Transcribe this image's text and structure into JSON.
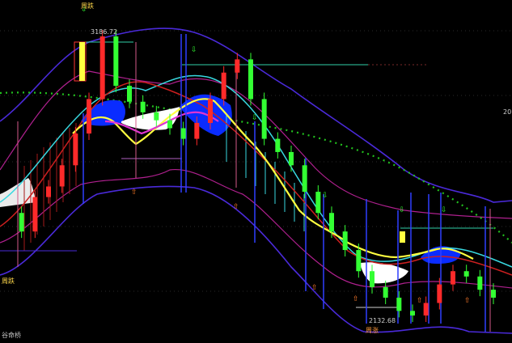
{
  "annotations": {
    "top_marker": "周跌",
    "high_price": "3186.72",
    "low_price": "2132.68",
    "low_marker": "周涨",
    "left_marker": "周跌",
    "axis_fragment": "20",
    "bottom_left": "谷命桥"
  },
  "colors": {
    "background": "#000000",
    "up_candle": "#ff2a2a",
    "down_candle": "#33ff33",
    "envelope": "#4a2ad9",
    "channel_outer": "#b0208f",
    "dotted_ma": "#22c11e",
    "cyan_ma": "#38d8e0",
    "yellow_ma": "#ffff40",
    "cloud_up": "#ffffff",
    "cloud_down": "#0a2cff",
    "marker_vertical": "#2f3fff",
    "level_line": "#31d0a8",
    "arrow_up": "#ff7a2a",
    "arrow_down": "#33ff33"
  },
  "chart_data": {
    "type": "candlestick",
    "x_axis": "time (weekly bars)",
    "price_high": 3186.72,
    "price_low": 2132.68,
    "series": [
      {
        "label": "price",
        "values": [
          2520,
          2450,
          2580,
          2620,
          2700,
          2820,
          2950,
          3186.72,
          3000,
          2940,
          2900,
          2870,
          2840,
          2800,
          2860,
          2950,
          3050,
          3100,
          2950,
          2800,
          2750,
          2700,
          2600,
          2520,
          2450,
          2380,
          2300,
          2240,
          2200,
          2150,
          2132.68,
          2180,
          2250,
          2300,
          2280,
          2230,
          2200
        ]
      }
    ]
  }
}
